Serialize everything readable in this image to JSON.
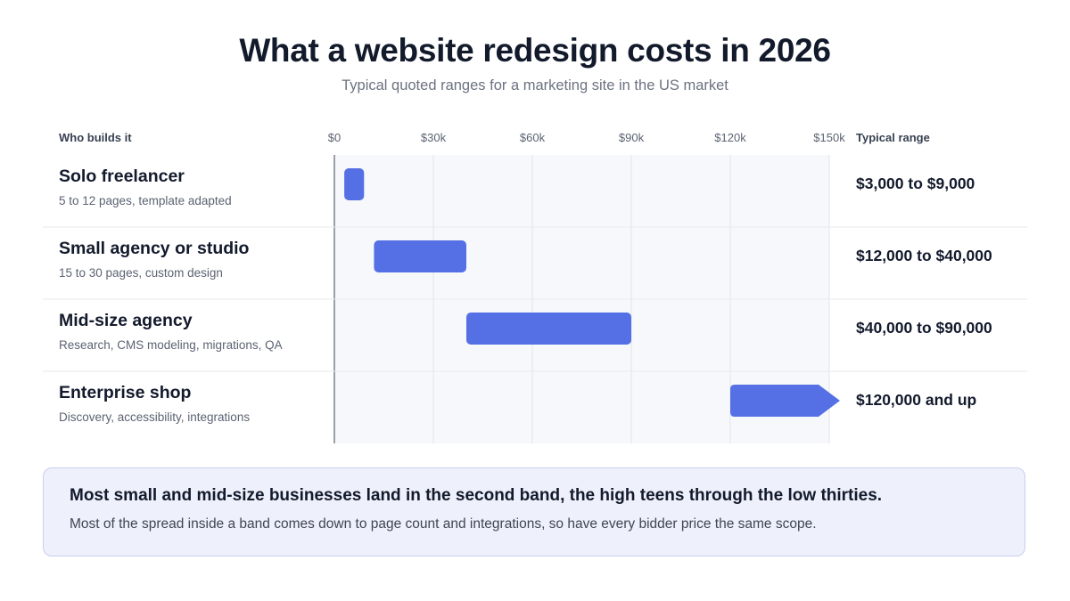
{
  "header": {
    "title": "What a website redesign costs in 2026",
    "subtitle": "Typical quoted ranges for a marketing site in the US market"
  },
  "columns": {
    "who": "Who builds it",
    "range": "Typical range"
  },
  "chart_data": {
    "type": "bar",
    "orientation": "horizontal-range",
    "xlim": [
      0,
      150000
    ],
    "x_ticks": [
      0,
      30000,
      60000,
      90000,
      120000,
      150000
    ],
    "x_tick_labels": [
      "$0",
      "$30k",
      "$60k",
      "$90k",
      "$120k",
      "$150k"
    ],
    "grid": true,
    "bar_color": "#5570e4",
    "categories": [
      {
        "name": "Solo freelancer",
        "desc": "5 to 12 pages, template adapted",
        "min": 3000,
        "max": 9000,
        "open_ended": false,
        "label": "$3,000 to $9,000"
      },
      {
        "name": "Small agency or studio",
        "desc": "15 to 30 pages, custom design",
        "min": 12000,
        "max": 40000,
        "open_ended": false,
        "label": "$12,000 to $40,000"
      },
      {
        "name": "Mid-size agency",
        "desc": "Research, CMS modeling, migrations, QA",
        "min": 40000,
        "max": 90000,
        "open_ended": false,
        "label": "$40,000 to $90,000"
      },
      {
        "name": "Enterprise shop",
        "desc": "Discovery, accessibility, integrations",
        "min": 120000,
        "max": null,
        "open_ended": true,
        "label": "$120,000 and up"
      }
    ]
  },
  "note": {
    "headline": "Most small and mid-size businesses land in the second band, the high teens through the low thirties.",
    "body": "Most of the spread inside a band comes down to page count and integrations, so have every bidder price the same scope."
  }
}
